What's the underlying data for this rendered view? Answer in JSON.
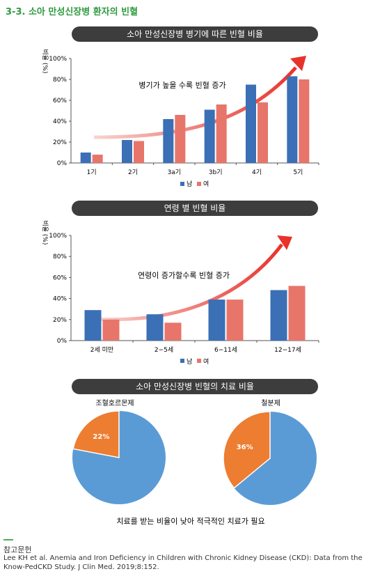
{
  "page": {
    "title": "3-3. 소아 만성신장병 환자의 빈혈"
  },
  "colors": {
    "male": "#3b6fb6",
    "female": "#e8756a",
    "arrow": "#e8322c",
    "pie_blue": "#5b9bd5",
    "pie_orange": "#ed7d31",
    "header": "#3d3d3d",
    "title_green": "#2e9a3e"
  },
  "chart_data": [
    {
      "type": "bar",
      "title": "소아 만성신장병 병기에 따른 빈혈 비율",
      "ylabel": "비율 (%)",
      "categories": [
        "1기",
        "2기",
        "3a기",
        "3b기",
        "4기",
        "5기"
      ],
      "series": [
        {
          "name": "남",
          "values": [
            10,
            22,
            42,
            51,
            75,
            83
          ]
        },
        {
          "name": "여",
          "values": [
            8,
            21,
            46,
            56,
            58,
            80
          ]
        }
      ],
      "ylim": [
        0,
        100
      ],
      "yticks": [
        "0%",
        "20%",
        "40%",
        "60%",
        "80%",
        "100%"
      ],
      "annotation": "병기가 높을 수록 빈혈 증가",
      "legend": "bottom"
    },
    {
      "type": "bar",
      "title": "연령 별 빈혈 비율",
      "ylabel": "비율 (%)",
      "categories": [
        "2세 미만",
        "2−5세",
        "6−11세",
        "12−17세"
      ],
      "series": [
        {
          "name": "남",
          "values": [
            29,
            25,
            39,
            48
          ]
        },
        {
          "name": "여",
          "values": [
            20,
            17,
            39,
            52
          ]
        }
      ],
      "ylim": [
        0,
        100
      ],
      "yticks": [
        "0%",
        "20%",
        "40%",
        "60%",
        "80%",
        "100%"
      ],
      "annotation": "연령이 증가할수록 빈혈 증가",
      "legend": "bottom"
    },
    {
      "type": "pie",
      "title": "소아 만성신장병 빈혈의 치료 비율",
      "pies": [
        {
          "name": "조혈호르몬제",
          "value": 22,
          "label": "22%"
        },
        {
          "name": "철분제",
          "value": 36,
          "label": "36%"
        }
      ],
      "footnote": "치료를 받는 비율이 낮아 적극적인 치료가 필요"
    }
  ],
  "reference": {
    "heading": "참고문헌",
    "text": "Lee KH et al. Anemia and Iron Deficiency in Children with Chronic Kidney Disease (CKD): Data from the Know-PedCKD Study. J Clin Med. 2019;8:152."
  }
}
